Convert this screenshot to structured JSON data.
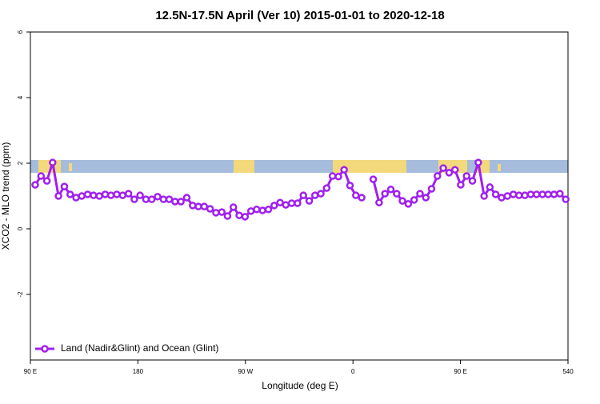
{
  "chart_data": {
    "type": "line",
    "title": "12.5N-17.5N April (Ver 10)   2015-01-01 to 2020-12-18",
    "x_label": "Longitude (deg E)",
    "y_label": "XCO2 - MLO trend (ppm)",
    "xlim": [
      90,
      540
    ],
    "xticks": [
      {
        "value": 90,
        "label": "90 E"
      },
      180,
      {
        "value": 270,
        "label": "90 W"
      },
      {
        "value": 360,
        "label": "0"
      },
      {
        "value": 450,
        "label": "90 E"
      },
      540
    ],
    "ylim": [
      -4,
      6
    ],
    "yticks": [
      -2,
      0,
      2,
      4,
      6
    ],
    "legend": "bottom-left",
    "x": [
      94,
      98.9,
      103.8,
      108.6,
      113.5,
      118.4,
      123.3,
      128.2,
      133,
      137.9,
      142.8,
      147.7,
      152.6,
      157.4,
      162.3,
      167.2,
      172.1,
      177,
      181.8,
      186.7,
      191.6,
      196.5,
      201.4,
      206.2,
      211.1,
      216,
      220.9,
      225.8,
      230.6,
      235.5,
      240.4,
      245.3,
      250.2,
      255,
      259.9,
      264.8,
      269.7,
      274.6,
      279.4,
      284.3,
      289.2,
      294.1,
      299,
      303.8,
      308.7,
      313.6,
      318.5,
      323.4,
      328.2,
      333.1,
      338,
      342.9,
      347.8,
      352.6,
      357.5,
      362.4,
      367.3,
      372.2,
      377,
      381.9,
      386.8,
      391.7,
      396.6,
      401.4,
      406.3,
      411.2,
      416.1,
      421,
      425.8,
      430.7,
      435.6,
      440.5,
      445.4,
      450.2,
      455.1,
      460,
      464.9,
      469.8,
      474.6,
      479.5,
      484.4,
      489.3,
      494.2,
      499,
      503.9,
      508.8,
      513.7,
      518.6,
      523.4,
      528.3,
      533.2,
      538.1
    ],
    "series": [
      {
        "name": "Land (Nadir&Glint) and Ocean (Glint)",
        "color": "#a020f0",
        "values": [
          1.34,
          1.61,
          1.46,
          2.02,
          1.0,
          1.29,
          1.05,
          0.95,
          1.0,
          1.05,
          1.02,
          1.0,
          1.05,
          1.02,
          1.05,
          1.02,
          1.07,
          0.9,
          1.02,
          0.9,
          0.9,
          0.98,
          0.9,
          0.9,
          0.83,
          0.83,
          0.95,
          0.71,
          0.68,
          0.68,
          0.61,
          0.49,
          0.51,
          0.39,
          0.66,
          0.41,
          0.37,
          0.54,
          0.59,
          0.56,
          0.59,
          0.71,
          0.8,
          0.73,
          0.78,
          0.78,
          1.02,
          0.85,
          1.02,
          1.07,
          1.24,
          1.61,
          1.59,
          1.8,
          1.32,
          1.02,
          0.95,
          null,
          1.51,
          0.8,
          1.07,
          1.2,
          1.07,
          0.85,
          0.76,
          0.88,
          1.07,
          0.95,
          1.22,
          1.61,
          1.85,
          1.71,
          1.8,
          1.34,
          1.61,
          1.46,
          2.02,
          1.0,
          1.27,
          1.05,
          0.95,
          1.0,
          1.05,
          1.02,
          1.02,
          1.05,
          1.05,
          1.05,
          1.05,
          1.05,
          1.07,
          0.9
        ]
      }
    ]
  }
}
